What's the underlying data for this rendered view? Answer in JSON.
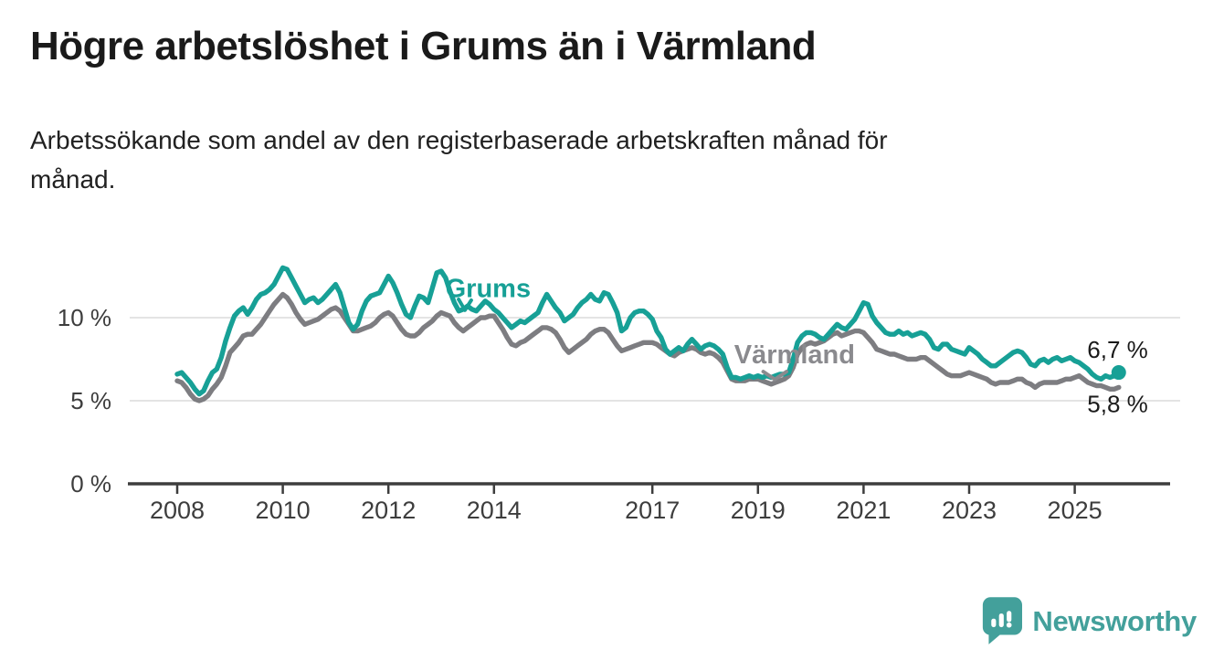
{
  "header": {
    "title": "Högre arbetslöshet i Grums än i Värmland",
    "subtitle": "Arbetssökande som andel av den registerbaserade arbetskraften månad för\nmånad."
  },
  "chart_data": {
    "type": "line",
    "unit": "%",
    "x_start": "2008-01",
    "x_end": "2025-11",
    "x_tick_years": [
      2008,
      2010,
      2012,
      2014,
      2017,
      2019,
      2021,
      2023,
      2025
    ],
    "y_ticks": [
      {
        "value": 0,
        "label": "0 %"
      },
      {
        "value": 5,
        "label": "5 %"
      },
      {
        "value": 10,
        "label": "10 %"
      }
    ],
    "ylim": [
      0,
      13.5
    ],
    "grid": "horizontal-only",
    "legend_position": "inline-annotations",
    "colors": {
      "grums": "#17a096",
      "varmland": "#7d7d81",
      "axis": "#3d3d3d",
      "grid": "#dcdcdc",
      "value_label": "#1a1a1a"
    },
    "series": [
      {
        "name": "Värmland",
        "color": "#7d7d81",
        "end_label": "5,8 %",
        "end_value": 5.8,
        "end_marker": false,
        "values": [
          6.2,
          6.1,
          5.8,
          5.4,
          5.1,
          5.0,
          5.1,
          5.3,
          5.7,
          6.0,
          6.4,
          7.1,
          7.9,
          8.2,
          8.5,
          8.9,
          9.0,
          9.0,
          9.3,
          9.6,
          10.0,
          10.4,
          10.8,
          11.1,
          11.4,
          11.2,
          10.8,
          10.3,
          9.9,
          9.6,
          9.7,
          9.8,
          9.9,
          10.1,
          10.3,
          10.5,
          10.6,
          10.4,
          10.0,
          9.6,
          9.2,
          9.2,
          9.3,
          9.4,
          9.5,
          9.7,
          10.0,
          10.2,
          10.3,
          10.1,
          9.7,
          9.3,
          9.0,
          8.9,
          8.9,
          9.1,
          9.4,
          9.6,
          9.8,
          10.1,
          10.3,
          10.2,
          10.1,
          9.7,
          9.4,
          9.2,
          9.4,
          9.6,
          9.8,
          10.0,
          10.0,
          10.1,
          10.1,
          9.7,
          9.3,
          8.8,
          8.4,
          8.3,
          8.5,
          8.6,
          8.8,
          9.0,
          9.2,
          9.4,
          9.4,
          9.3,
          9.1,
          8.7,
          8.2,
          7.9,
          8.1,
          8.3,
          8.5,
          8.7,
          9.0,
          9.2,
          9.3,
          9.3,
          9.1,
          8.7,
          8.3,
          8.0,
          8.1,
          8.2,
          8.3,
          8.4,
          8.5,
          8.5,
          8.5,
          8.4,
          8.2,
          8.0,
          7.8,
          7.7,
          7.9,
          8.0,
          8.1,
          8.2,
          8.1,
          7.9,
          7.8,
          7.9,
          7.8,
          7.6,
          7.3,
          6.8,
          6.3,
          6.2,
          6.2,
          6.2,
          6.3,
          6.3,
          6.3,
          6.2,
          6.1,
          6.0,
          6.1,
          6.2,
          6.3,
          6.5,
          7.0,
          7.8,
          8.2,
          8.4,
          8.5,
          8.4,
          8.5,
          8.6,
          8.8,
          9.0,
          9.1,
          8.9,
          9.0,
          9.1,
          9.2,
          9.2,
          9.1,
          8.8,
          8.5,
          8.1,
          8.0,
          7.9,
          7.8,
          7.8,
          7.7,
          7.6,
          7.5,
          7.5,
          7.5,
          7.6,
          7.6,
          7.4,
          7.2,
          7.0,
          6.8,
          6.6,
          6.5,
          6.5,
          6.5,
          6.6,
          6.7,
          6.6,
          6.5,
          6.4,
          6.3,
          6.1,
          6.0,
          6.1,
          6.1,
          6.1,
          6.2,
          6.3,
          6.3,
          6.1,
          6.0,
          5.8,
          6.0,
          6.1,
          6.1,
          6.1,
          6.1,
          6.2,
          6.3,
          6.3,
          6.4,
          6.5,
          6.3,
          6.1,
          6.0,
          5.9,
          5.9,
          5.8,
          5.7,
          5.7,
          5.8
        ]
      },
      {
        "name": "Grums",
        "color": "#17a096",
        "end_label": "6,7 %",
        "end_value": 6.7,
        "end_marker": true,
        "values": [
          6.6,
          6.7,
          6.4,
          6.1,
          5.7,
          5.4,
          5.6,
          6.2,
          6.7,
          6.9,
          7.6,
          8.6,
          9.4,
          10.1,
          10.4,
          10.6,
          10.2,
          10.6,
          11.1,
          11.4,
          11.5,
          11.7,
          12.0,
          12.5,
          13.0,
          12.9,
          12.4,
          11.9,
          11.4,
          10.9,
          11.1,
          11.2,
          10.9,
          11.1,
          11.4,
          11.7,
          12.0,
          11.5,
          10.6,
          9.7,
          9.3,
          9.6,
          10.4,
          11.0,
          11.3,
          11.4,
          11.5,
          12.0,
          12.5,
          12.1,
          11.5,
          10.8,
          10.2,
          10.0,
          10.7,
          11.3,
          11.2,
          10.9,
          11.8,
          12.7,
          12.8,
          12.4,
          11.6,
          10.9,
          10.4,
          10.5,
          10.7,
          10.5,
          10.4,
          10.7,
          11.0,
          10.8,
          10.5,
          10.3,
          10.0,
          9.7,
          9.4,
          9.6,
          9.8,
          9.7,
          9.9,
          10.1,
          10.3,
          10.9,
          11.4,
          11.0,
          10.6,
          10.3,
          9.8,
          10.0,
          10.2,
          10.6,
          10.9,
          11.1,
          11.4,
          11.1,
          11.0,
          11.5,
          11.4,
          10.9,
          10.3,
          9.2,
          9.4,
          10.0,
          10.3,
          10.4,
          10.4,
          10.2,
          9.9,
          9.2,
          8.8,
          8.1,
          7.8,
          8.0,
          8.2,
          8.0,
          8.4,
          8.7,
          8.4,
          8.1,
          8.3,
          8.4,
          8.3,
          8.1,
          7.8,
          7.0,
          6.4,
          6.4,
          6.3,
          6.4,
          6.5,
          6.4,
          6.5,
          6.4,
          6.5,
          6.4,
          6.5,
          6.6,
          6.6,
          6.7,
          7.5,
          8.5,
          8.9,
          9.1,
          9.1,
          9.0,
          8.8,
          8.7,
          9.0,
          9.3,
          9.6,
          9.4,
          9.3,
          9.6,
          9.9,
          10.4,
          10.9,
          10.8,
          10.1,
          9.7,
          9.4,
          9.1,
          9.0,
          9.0,
          9.2,
          9.0,
          9.1,
          8.9,
          9.0,
          9.1,
          9.0,
          8.7,
          8.2,
          8.1,
          8.4,
          8.4,
          8.1,
          8.0,
          7.9,
          7.8,
          8.2,
          8.0,
          7.8,
          7.5,
          7.3,
          7.1,
          7.1,
          7.3,
          7.5,
          7.7,
          7.9,
          8.0,
          7.9,
          7.6,
          7.2,
          7.1,
          7.4,
          7.5,
          7.3,
          7.5,
          7.6,
          7.4,
          7.5,
          7.6,
          7.4,
          7.3,
          7.1,
          6.9,
          6.6,
          6.4,
          6.3,
          6.5,
          6.4,
          6.5,
          6.7
        ]
      }
    ],
    "annotations": [
      {
        "text": "Grums",
        "color": "#17a096",
        "label_pos": {
          "year": 2013.08,
          "value": 11.25
        },
        "arrow": [
          [
            2013.33,
            11.1
          ],
          [
            2013.45,
            10.45
          ],
          [
            2013.57,
            11.05
          ]
        ]
      },
      {
        "text": "Värmland",
        "color": "#8a8a8e",
        "label_pos": {
          "year": 2018.55,
          "value": 7.25
        },
        "arrow": [
          [
            2019.1,
            6.75
          ],
          [
            2019.32,
            6.28
          ],
          [
            2019.54,
            6.75
          ]
        ]
      }
    ]
  },
  "footer": {
    "brand": "Newsworthy"
  }
}
